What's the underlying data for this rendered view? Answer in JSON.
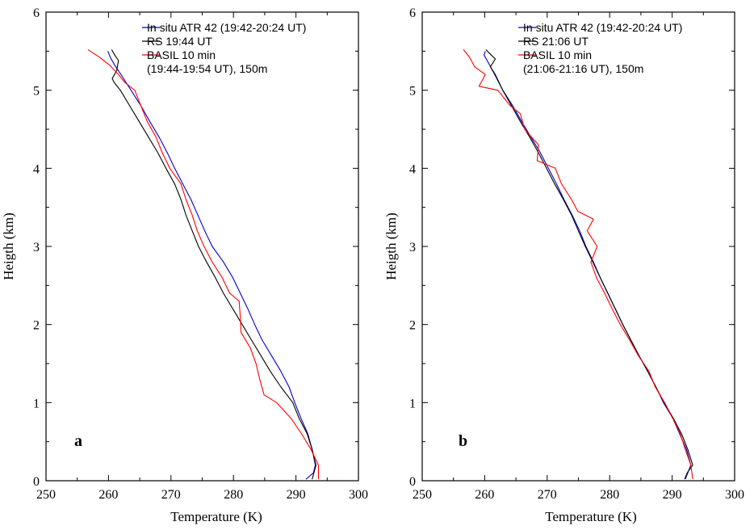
{
  "chart_data": [
    {
      "type": "line",
      "panel_label": "a",
      "xlabel": "Temperature (K)",
      "ylabel": "Heigth (km)",
      "xlim": [
        250,
        300
      ],
      "ylim": [
        0,
        6
      ],
      "xticks": [
        "250",
        "260",
        "270",
        "280",
        "290",
        "300"
      ],
      "yticks": [
        "0",
        "1",
        "2",
        "3",
        "4",
        "5",
        "6"
      ],
      "legend_position": "top-right",
      "series": [
        {
          "name": "In situ ATR 42 (19:42-20:24 UT)",
          "legend_lines": [
            "In situ ATR 42 (19:42-20:24 UT)"
          ],
          "color": "#0000cc",
          "points": [
            [
              291.6,
              0.02
            ],
            [
              292.8,
              0.1
            ],
            [
              293.1,
              0.2
            ],
            [
              292.6,
              0.4
            ],
            [
              291.9,
              0.6
            ],
            [
              290.8,
              0.8
            ],
            [
              289.8,
              1.0
            ],
            [
              288.9,
              1.2
            ],
            [
              287.6,
              1.4
            ],
            [
              286.1,
              1.6
            ],
            [
              284.6,
              1.8
            ],
            [
              283.4,
              2.0
            ],
            [
              282.3,
              2.2
            ],
            [
              281.1,
              2.4
            ],
            [
              279.9,
              2.6
            ],
            [
              278.4,
              2.8
            ],
            [
              276.6,
              3.0
            ],
            [
              275.4,
              3.2
            ],
            [
              274.3,
              3.4
            ],
            [
              273.2,
              3.6
            ],
            [
              271.9,
              3.8
            ],
            [
              270.6,
              4.0
            ],
            [
              269.4,
              4.2
            ],
            [
              268.1,
              4.4
            ],
            [
              266.6,
              4.6
            ],
            [
              265.2,
              4.8
            ],
            [
              263.6,
              5.0
            ],
            [
              262.0,
              5.2
            ],
            [
              261.0,
              5.32
            ],
            [
              260.3,
              5.42
            ],
            [
              259.9,
              5.5
            ]
          ]
        },
        {
          "name": "RS 19:44 UT",
          "legend_lines": [
            "RS 19:44 UT"
          ],
          "color": "#000000",
          "points": [
            [
              292.6,
              0.02
            ],
            [
              293.2,
              0.2
            ],
            [
              292.6,
              0.4
            ],
            [
              291.8,
              0.6
            ],
            [
              290.5,
              0.8
            ],
            [
              289.5,
              1.0
            ],
            [
              287.6,
              1.2
            ],
            [
              285.9,
              1.4
            ],
            [
              284.4,
              1.6
            ],
            [
              282.9,
              1.8
            ],
            [
              281.4,
              2.0
            ],
            [
              279.9,
              2.2
            ],
            [
              278.4,
              2.4
            ],
            [
              277.1,
              2.6
            ],
            [
              275.7,
              2.8
            ],
            [
              274.4,
              3.0
            ],
            [
              273.4,
              3.2
            ],
            [
              272.4,
              3.4
            ],
            [
              271.6,
              3.6
            ],
            [
              270.6,
              3.8
            ],
            [
              269.2,
              4.0
            ],
            [
              267.9,
              4.2
            ],
            [
              266.4,
              4.4
            ],
            [
              264.9,
              4.6
            ],
            [
              263.4,
              4.8
            ],
            [
              261.9,
              5.0
            ],
            [
              260.9,
              5.1
            ],
            [
              260.6,
              5.15
            ],
            [
              261.3,
              5.25
            ],
            [
              261.6,
              5.38
            ],
            [
              261.0,
              5.45
            ],
            [
              260.5,
              5.52
            ]
          ]
        },
        {
          "name": "BASIL 10 min (19:44-19:54 UT), 150m",
          "legend_lines": [
            "BASIL 10 min",
            "(19:44-19:54 UT), 150m"
          ],
          "color": "#ff0000",
          "points": [
            [
              293.6,
              0.02
            ],
            [
              293.6,
              0.2
            ],
            [
              292.4,
              0.4
            ],
            [
              290.9,
              0.6
            ],
            [
              289.2,
              0.8
            ],
            [
              286.9,
              1.0
            ],
            [
              284.9,
              1.1
            ],
            [
              284.2,
              1.3
            ],
            [
              283.6,
              1.5
            ],
            [
              282.7,
              1.7
            ],
            [
              281.2,
              1.9
            ],
            [
              281.1,
              2.1
            ],
            [
              280.9,
              2.3
            ],
            [
              279.4,
              2.4
            ],
            [
              278.2,
              2.6
            ],
            [
              276.6,
              2.8
            ],
            [
              275.3,
              3.0
            ],
            [
              274.2,
              3.2
            ],
            [
              273.4,
              3.4
            ],
            [
              272.4,
              3.6
            ],
            [
              271.6,
              3.8
            ],
            [
              269.8,
              4.0
            ],
            [
              268.6,
              4.2
            ],
            [
              267.6,
              4.4
            ],
            [
              266.2,
              4.6
            ],
            [
              265.2,
              4.8
            ],
            [
              264.2,
              5.0
            ],
            [
              262.6,
              5.1
            ],
            [
              261.6,
              5.2
            ],
            [
              260.2,
              5.32
            ],
            [
              258.6,
              5.42
            ],
            [
              256.7,
              5.52
            ]
          ]
        }
      ]
    },
    {
      "type": "line",
      "panel_label": "b",
      "xlabel": "Temperature (K)",
      "ylabel": "Heigth (km)",
      "xlim": [
        250,
        300
      ],
      "ylim": [
        0,
        6
      ],
      "xticks": [
        "250",
        "260",
        "270",
        "280",
        "290",
        "300"
      ],
      "yticks": [
        "0",
        "1",
        "2",
        "3",
        "4",
        "5",
        "6"
      ],
      "legend_position": "top-right",
      "series": [
        {
          "name": "In situ ATR 42 (19:42-20:24 UT)",
          "legend_lines": [
            "In situ ATR 42 (19:42-20:24 UT)"
          ],
          "color": "#0000cc",
          "points": [
            [
              292.1,
              0.02
            ],
            [
              293.0,
              0.2
            ],
            [
              292.3,
              0.4
            ],
            [
              291.2,
              0.6
            ],
            [
              290.1,
              0.8
            ],
            [
              288.6,
              1.0
            ],
            [
              287.4,
              1.2
            ],
            [
              286.1,
              1.4
            ],
            [
              284.7,
              1.6
            ],
            [
              283.4,
              1.8
            ],
            [
              282.1,
              2.0
            ],
            [
              280.9,
              2.2
            ],
            [
              279.7,
              2.4
            ],
            [
              278.5,
              2.6
            ],
            [
              277.4,
              2.8
            ],
            [
              276.2,
              3.0
            ],
            [
              275.2,
              3.2
            ],
            [
              274.0,
              3.4
            ],
            [
              272.7,
              3.6
            ],
            [
              271.5,
              3.8
            ],
            [
              270.2,
              4.0
            ],
            [
              268.9,
              4.2
            ],
            [
              267.4,
              4.4
            ],
            [
              265.9,
              4.6
            ],
            [
              264.5,
              4.8
            ],
            [
              262.9,
              5.0
            ],
            [
              261.6,
              5.2
            ],
            [
              260.6,
              5.35
            ],
            [
              259.9,
              5.45
            ],
            [
              260.1,
              5.5
            ]
          ]
        },
        {
          "name": "RS 21:06 UT",
          "legend_lines": [
            "RS 21:06 UT"
          ],
          "color": "#000000",
          "points": [
            [
              292.0,
              0.02
            ],
            [
              292.4,
              0.1
            ],
            [
              293.3,
              0.2
            ],
            [
              292.5,
              0.4
            ],
            [
              291.5,
              0.6
            ],
            [
              290.2,
              0.8
            ],
            [
              288.7,
              1.0
            ],
            [
              287.4,
              1.2
            ],
            [
              286.1,
              1.4
            ],
            [
              284.7,
              1.6
            ],
            [
              283.4,
              1.8
            ],
            [
              282.1,
              2.0
            ],
            [
              280.9,
              2.2
            ],
            [
              279.7,
              2.4
            ],
            [
              278.5,
              2.6
            ],
            [
              277.3,
              2.8
            ],
            [
              276.1,
              3.0
            ],
            [
              275.0,
              3.2
            ],
            [
              273.9,
              3.4
            ],
            [
              272.6,
              3.6
            ],
            [
              271.2,
              3.8
            ],
            [
              269.9,
              4.0
            ],
            [
              268.6,
              4.2
            ],
            [
              267.2,
              4.4
            ],
            [
              265.7,
              4.6
            ],
            [
              264.3,
              4.8
            ],
            [
              262.9,
              5.0
            ],
            [
              261.7,
              5.2
            ],
            [
              260.9,
              5.3
            ],
            [
              261.7,
              5.4
            ],
            [
              260.8,
              5.47
            ],
            [
              260.2,
              5.52
            ]
          ]
        },
        {
          "name": "BASIL 10 min (21:06-21:16 UT), 150m",
          "legend_lines": [
            "BASIL 10 min",
            "(21:06-21:16 UT), 150m"
          ],
          "color": "#ff0000",
          "points": [
            [
              293.3,
              0.02
            ],
            [
              293.0,
              0.2
            ],
            [
              292.1,
              0.4
            ],
            [
              291.3,
              0.6
            ],
            [
              290.1,
              0.8
            ],
            [
              288.8,
              1.0
            ],
            [
              287.3,
              1.2
            ],
            [
              286.3,
              1.4
            ],
            [
              284.6,
              1.6
            ],
            [
              283.2,
              1.8
            ],
            [
              281.7,
              2.0
            ],
            [
              280.4,
              2.2
            ],
            [
              279.2,
              2.4
            ],
            [
              277.9,
              2.6
            ],
            [
              277.0,
              2.8
            ],
            [
              278.0,
              3.0
            ],
            [
              276.4,
              3.2
            ],
            [
              277.4,
              3.35
            ],
            [
              274.9,
              3.45
            ],
            [
              273.9,
              3.6
            ],
            [
              272.3,
              3.8
            ],
            [
              271.3,
              4.0
            ],
            [
              268.4,
              4.1
            ],
            [
              268.6,
              4.3
            ],
            [
              266.4,
              4.5
            ],
            [
              265.7,
              4.7
            ],
            [
              264.1,
              4.8
            ],
            [
              262.1,
              5.0
            ],
            [
              259.1,
              5.05
            ],
            [
              260.1,
              5.2
            ],
            [
              258.4,
              5.3
            ],
            [
              257.6,
              5.42
            ],
            [
              256.6,
              5.52
            ]
          ]
        }
      ]
    }
  ]
}
